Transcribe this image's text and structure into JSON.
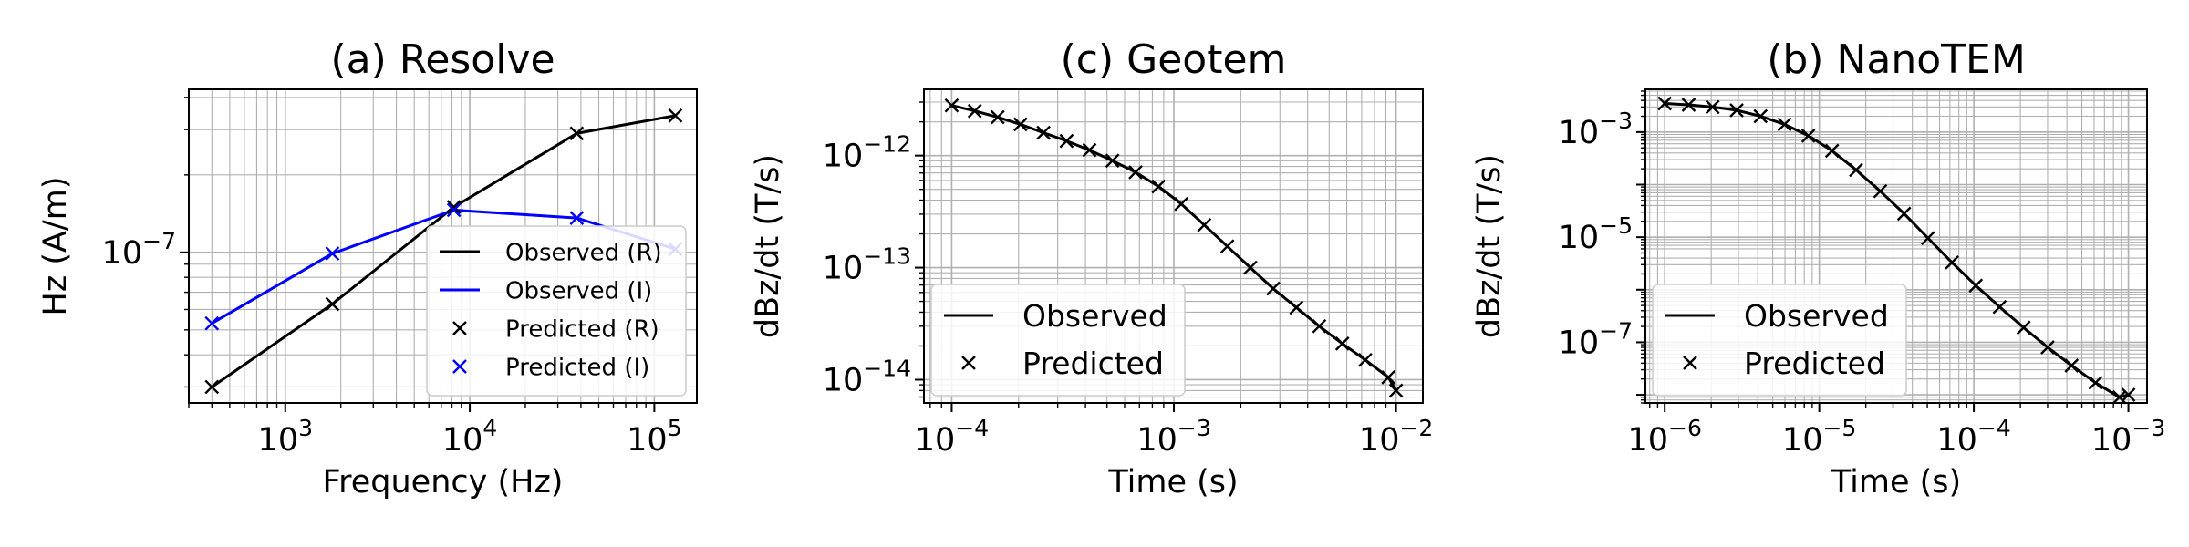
{
  "colors": {
    "black": "#000000",
    "blue": "#0000ff",
    "grid": "#b0b0b0"
  },
  "chart_data": [
    {
      "type": "line",
      "title": "(a) Resolve",
      "xlabel": "Frequency (Hz)",
      "ylabel": "Hz (A/m)",
      "xscale": "log",
      "yscale": "log",
      "xlim": [
        300,
        170000
      ],
      "ylim": [
        2.6e-08,
        4.3e-07
      ],
      "xticks": [
        {
          "value": 1000,
          "mant": "10",
          "exp": "3"
        },
        {
          "value": 10000,
          "mant": "10",
          "exp": "4"
        },
        {
          "value": 100000,
          "mant": "10",
          "exp": "5"
        }
      ],
      "yticks": [
        {
          "value": 1e-07,
          "mant": "10",
          "exp": "−7"
        }
      ],
      "grid": true,
      "legend_position": "lower-right",
      "x": [
        400,
        1800,
        8200,
        38000,
        130000
      ],
      "series": [
        {
          "name": "Observed (R)",
          "style": "line",
          "color": "#000000",
          "values": [
            3e-08,
            6.3e-08,
            1.5e-07,
            2.9e-07,
            3.4e-07
          ]
        },
        {
          "name": "Observed (I)",
          "style": "line",
          "color": "#0000ff",
          "values": [
            5.3e-08,
            9.9e-08,
            1.46e-07,
            1.36e-07,
            1.03e-07
          ]
        },
        {
          "name": "Predicted (R)",
          "style": "marker",
          "color": "#000000",
          "values": [
            3e-08,
            6.3e-08,
            1.5e-07,
            2.9e-07,
            3.4e-07
          ]
        },
        {
          "name": "Predicted (I)",
          "style": "marker",
          "color": "#0000ff",
          "values": [
            5.3e-08,
            9.9e-08,
            1.46e-07,
            1.36e-07,
            1.03e-07
          ]
        }
      ]
    },
    {
      "type": "line",
      "title": "(c) Geotem",
      "xlabel": "Time (s)",
      "ylabel": "dBz/dt (T/s)",
      "xscale": "log",
      "yscale": "log",
      "xlim": [
        7.5e-05,
        0.0132
      ],
      "ylim": [
        6.2e-15,
        3.9e-12
      ],
      "xticks": [
        {
          "value": 0.0001,
          "mant": "10",
          "exp": "−4"
        },
        {
          "value": 0.001,
          "mant": "10",
          "exp": "−3"
        },
        {
          "value": 0.01,
          "mant": "10",
          "exp": "−2"
        }
      ],
      "yticks": [
        {
          "value": 1e-14,
          "mant": "10",
          "exp": "−14"
        },
        {
          "value": 1e-13,
          "mant": "10",
          "exp": "−13"
        },
        {
          "value": 1e-12,
          "mant": "10",
          "exp": "−12"
        }
      ],
      "grid": true,
      "legend_position": "lower-left",
      "x": [
        0.0001,
        0.000127,
        0.000161,
        0.000204,
        0.000259,
        0.000329,
        0.000417,
        0.000529,
        0.000672,
        0.000853,
        0.00108,
        0.00137,
        0.00174,
        0.00221,
        0.0028,
        0.00356,
        0.00451,
        0.00573,
        0.00727,
        0.00923,
        0.01
      ],
      "series": [
        {
          "name": "Observed",
          "style": "line",
          "color": "#000000",
          "values": [
            2.8e-12,
            2.5e-12,
            2.2e-12,
            1.9e-12,
            1.6e-12,
            1.35e-12,
            1.12e-12,
            9e-13,
            7.1e-13,
            5.3e-13,
            3.7e-13,
            2.4e-13,
            1.55e-13,
            1e-13,
            6.5e-14,
            4.4e-14,
            3e-14,
            2.1e-14,
            1.5e-14,
            1.05e-14,
            8e-15
          ]
        },
        {
          "name": "Predicted",
          "style": "marker",
          "color": "#000000",
          "values": [
            2.8e-12,
            2.5e-12,
            2.2e-12,
            1.9e-12,
            1.6e-12,
            1.35e-12,
            1.12e-12,
            9e-13,
            7.1e-13,
            5.3e-13,
            3.7e-13,
            2.4e-13,
            1.55e-13,
            1e-13,
            6.5e-14,
            4.4e-14,
            3e-14,
            2.1e-14,
            1.5e-14,
            1.05e-14,
            8e-15
          ]
        }
      ]
    },
    {
      "type": "line",
      "title": "(b) NanoTEM",
      "xlabel": "Time (s)",
      "ylabel": "dBz/dt (T/s)",
      "xscale": "log",
      "yscale": "log",
      "xlim": [
        7.5e-07,
        0.00132
      ],
      "ylim": [
        7e-09,
        0.0065
      ],
      "xticks": [
        {
          "value": 1e-06,
          "mant": "10",
          "exp": "−6"
        },
        {
          "value": 1e-05,
          "mant": "10",
          "exp": "−5"
        },
        {
          "value": 0.0001,
          "mant": "10",
          "exp": "−4"
        },
        {
          "value": 0.001,
          "mant": "10",
          "exp": "−3"
        }
      ],
      "yticks": [
        {
          "value": 1e-07,
          "mant": "10",
          "exp": "−7"
        },
        {
          "value": 1e-05,
          "mant": "10",
          "exp": "−5"
        },
        {
          "value": 0.001,
          "mant": "10",
          "exp": "−3"
        }
      ],
      "grid": true,
      "legend_position": "lower-left",
      "x": [
        1e-06,
        1.43e-06,
        2.04e-06,
        2.92e-06,
        4.17e-06,
        5.96e-06,
        8.5e-06,
        1.21e-05,
        1.73e-05,
        2.48e-05,
        3.54e-05,
        5.05e-05,
        7.22e-05,
        0.000103,
        0.000147,
        0.00021,
        0.0003,
        0.000429,
        0.000613,
        0.000875,
        0.001
      ],
      "series": [
        {
          "name": "Observed",
          "style": "line",
          "color": "#000000",
          "values": [
            0.0035,
            0.0033,
            0.003,
            0.0026,
            0.002,
            0.0014,
            0.00085,
            0.00044,
            0.00019,
            7.5e-05,
            2.8e-05,
            9.6e-06,
            3.3e-06,
            1.2e-06,
            4.7e-07,
            1.9e-07,
            8e-08,
            3.6e-08,
            1.7e-08,
            9e-09,
            1e-08
          ]
        },
        {
          "name": "Predicted",
          "style": "marker",
          "color": "#000000",
          "values": [
            0.0035,
            0.0033,
            0.003,
            0.0026,
            0.002,
            0.0014,
            0.00085,
            0.00044,
            0.00019,
            7.5e-05,
            2.8e-05,
            9.6e-06,
            3.3e-06,
            1.2e-06,
            4.7e-07,
            1.9e-07,
            8e-08,
            3.6e-08,
            1.7e-08,
            9e-09,
            1e-08
          ]
        }
      ]
    }
  ]
}
